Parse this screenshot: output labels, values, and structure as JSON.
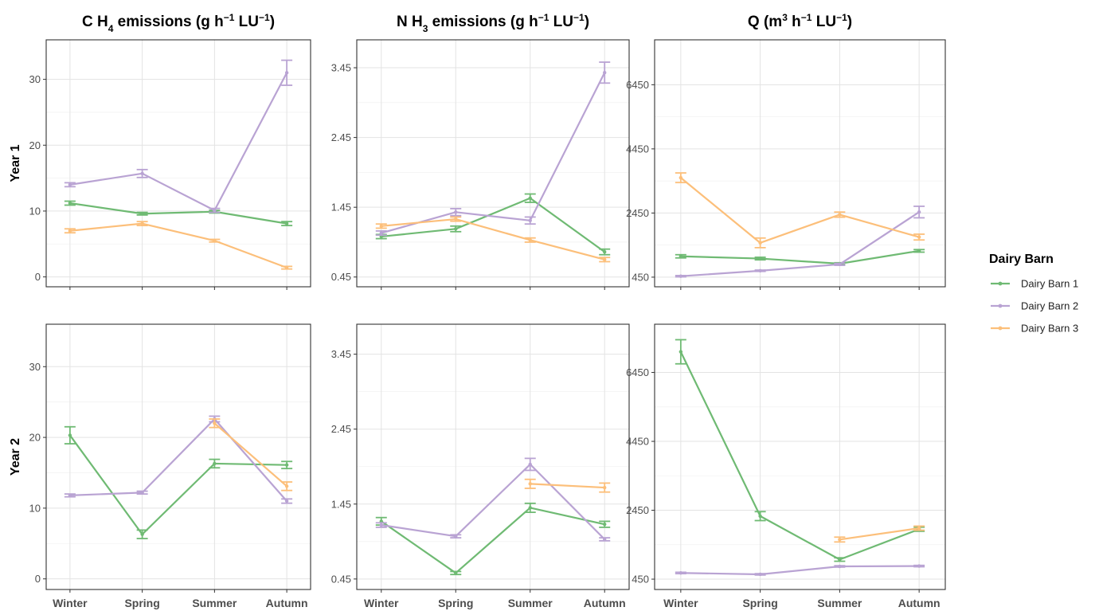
{
  "chart_data": {
    "type": "line",
    "layout": "facet-grid",
    "categories": [
      "Winter",
      "Spring",
      "Summer",
      "Autumn"
    ],
    "legend": {
      "title": "Dairy Barn",
      "position": "right"
    },
    "colors": {
      "Dairy Barn 1": "#6fba73",
      "Dairy Barn 2": "#b9a3d3",
      "Dairy Barn 3": "#fcbf7a"
    },
    "grid": true,
    "rows": [
      {
        "label": "Year 1"
      },
      {
        "label": "Year 2"
      }
    ],
    "columns": [
      {
        "title": {
          "pre": "C H",
          "sub": "4",
          "mid": " emissions (g h",
          "sup1": "−1",
          "mid2": " LU",
          "sup2": "−1",
          "post": ")"
        },
        "ylim": [
          -1.5,
          36
        ],
        "yticks": [
          0,
          10,
          20,
          30
        ],
        "yticklabels": [
          "0",
          "10",
          "20",
          "30"
        ]
      },
      {
        "title": {
          "pre": "N H",
          "sub": "3",
          "mid": " emissions (g h",
          "sup1": "−1",
          "mid2": " LU",
          "sup2": "−1",
          "post": ")"
        },
        "ylim": [
          0.31,
          3.85
        ],
        "yticks": [
          0.45,
          1.45,
          2.45,
          3.45
        ],
        "yticklabels": [
          "0.45",
          "1.45",
          "2.45",
          "3.45"
        ]
      },
      {
        "title": {
          "pre": "Q (m",
          "sub": "",
          "mid": "",
          "sup1": "3",
          "mid2": " h",
          "sup2": "−1",
          "post": " LU",
          "sup3": "−1",
          "post2": ")"
        },
        "ylim": [
          150,
          7850
        ],
        "yticks": [
          450,
          2450,
          4450,
          6450
        ],
        "yticklabels": [
          "450",
          "2450",
          "4450",
          "6450"
        ]
      }
    ],
    "panels": [
      {
        "row": 0,
        "col": 0,
        "series": [
          {
            "name": "Dairy Barn 1",
            "values": [
              11.2,
              9.6,
              9.9,
              8.1
            ],
            "err": [
              0.3,
              0.2,
              0.2,
              0.3
            ]
          },
          {
            "name": "Dairy Barn 2",
            "values": [
              14.0,
              15.7,
              10.1,
              31.0
            ],
            "err": [
              0.3,
              0.6,
              0.3,
              1.9
            ]
          },
          {
            "name": "Dairy Barn 3",
            "values": [
              7.0,
              8.1,
              5.5,
              1.4
            ],
            "err": [
              0.3,
              0.3,
              0.2,
              0.2
            ]
          }
        ]
      },
      {
        "row": 0,
        "col": 1,
        "series": [
          {
            "name": "Dairy Barn 1",
            "values": [
              1.03,
              1.14,
              1.58,
              0.81
            ],
            "err": [
              0.03,
              0.04,
              0.06,
              0.04
            ]
          },
          {
            "name": "Dairy Barn 2",
            "values": [
              1.08,
              1.38,
              1.26,
              3.38
            ],
            "err": [
              0.03,
              0.05,
              0.05,
              0.15
            ]
          },
          {
            "name": "Dairy Barn 3",
            "values": [
              1.18,
              1.28,
              0.98,
              0.7
            ],
            "err": [
              0.03,
              0.03,
              0.03,
              0.03
            ]
          }
        ]
      },
      {
        "row": 0,
        "col": 2,
        "series": [
          {
            "name": "Dairy Barn 1",
            "values": [
              1100,
              1030,
              870,
              1270
            ],
            "err": [
              50,
              40,
              30,
              40
            ]
          },
          {
            "name": "Dairy Barn 2",
            "values": [
              480,
              650,
              850,
              2480
            ],
            "err": [
              20,
              20,
              30,
              180
            ]
          },
          {
            "name": "Dairy Barn 3",
            "values": [
              3550,
              1520,
              2400,
              1700
            ],
            "err": [
              150,
              150,
              80,
              90
            ]
          }
        ]
      },
      {
        "row": 1,
        "col": 0,
        "series": [
          {
            "name": "Dairy Barn 1",
            "values": [
              20.3,
              6.3,
              16.3,
              16.1
            ],
            "err": [
              1.2,
              0.6,
              0.6,
              0.5
            ]
          },
          {
            "name": "Dairy Barn 2",
            "values": [
              11.8,
              12.2,
              22.6,
              11.0
            ],
            "err": [
              0.2,
              0.2,
              0.4,
              0.3
            ]
          },
          {
            "name": "Dairy Barn 3",
            "values": [
              null,
              null,
              22.0,
              13.1
            ],
            "err": [
              0,
              0,
              0.6,
              0.6
            ]
          }
        ]
      },
      {
        "row": 1,
        "col": 1,
        "series": [
          {
            "name": "Dairy Barn 1",
            "values": [
              1.22,
              0.53,
              1.4,
              1.18
            ],
            "err": [
              0.05,
              0.02,
              0.06,
              0.04
            ]
          },
          {
            "name": "Dairy Barn 2",
            "values": [
              1.17,
              1.02,
              1.98,
              0.98
            ],
            "err": [
              0.03,
              0.02,
              0.08,
              0.02
            ]
          },
          {
            "name": "Dairy Barn 3",
            "values": [
              null,
              null,
              1.72,
              1.67
            ],
            "err": [
              0,
              0,
              0.06,
              0.06
            ]
          }
        ]
      },
      {
        "row": 1,
        "col": 2,
        "series": [
          {
            "name": "Dairy Barn 1",
            "values": [
              7050,
              2280,
              1020,
              1900
            ],
            "err": [
              350,
              130,
              50,
              60
            ]
          },
          {
            "name": "Dairy Barn 2",
            "values": [
              630,
              590,
              820,
              830
            ],
            "err": [
              20,
              20,
              20,
              20
            ]
          },
          {
            "name": "Dairy Barn 3",
            "values": [
              null,
              null,
              1600,
              1930
            ],
            "err": [
              0,
              0,
              70,
              60
            ]
          }
        ]
      }
    ]
  }
}
